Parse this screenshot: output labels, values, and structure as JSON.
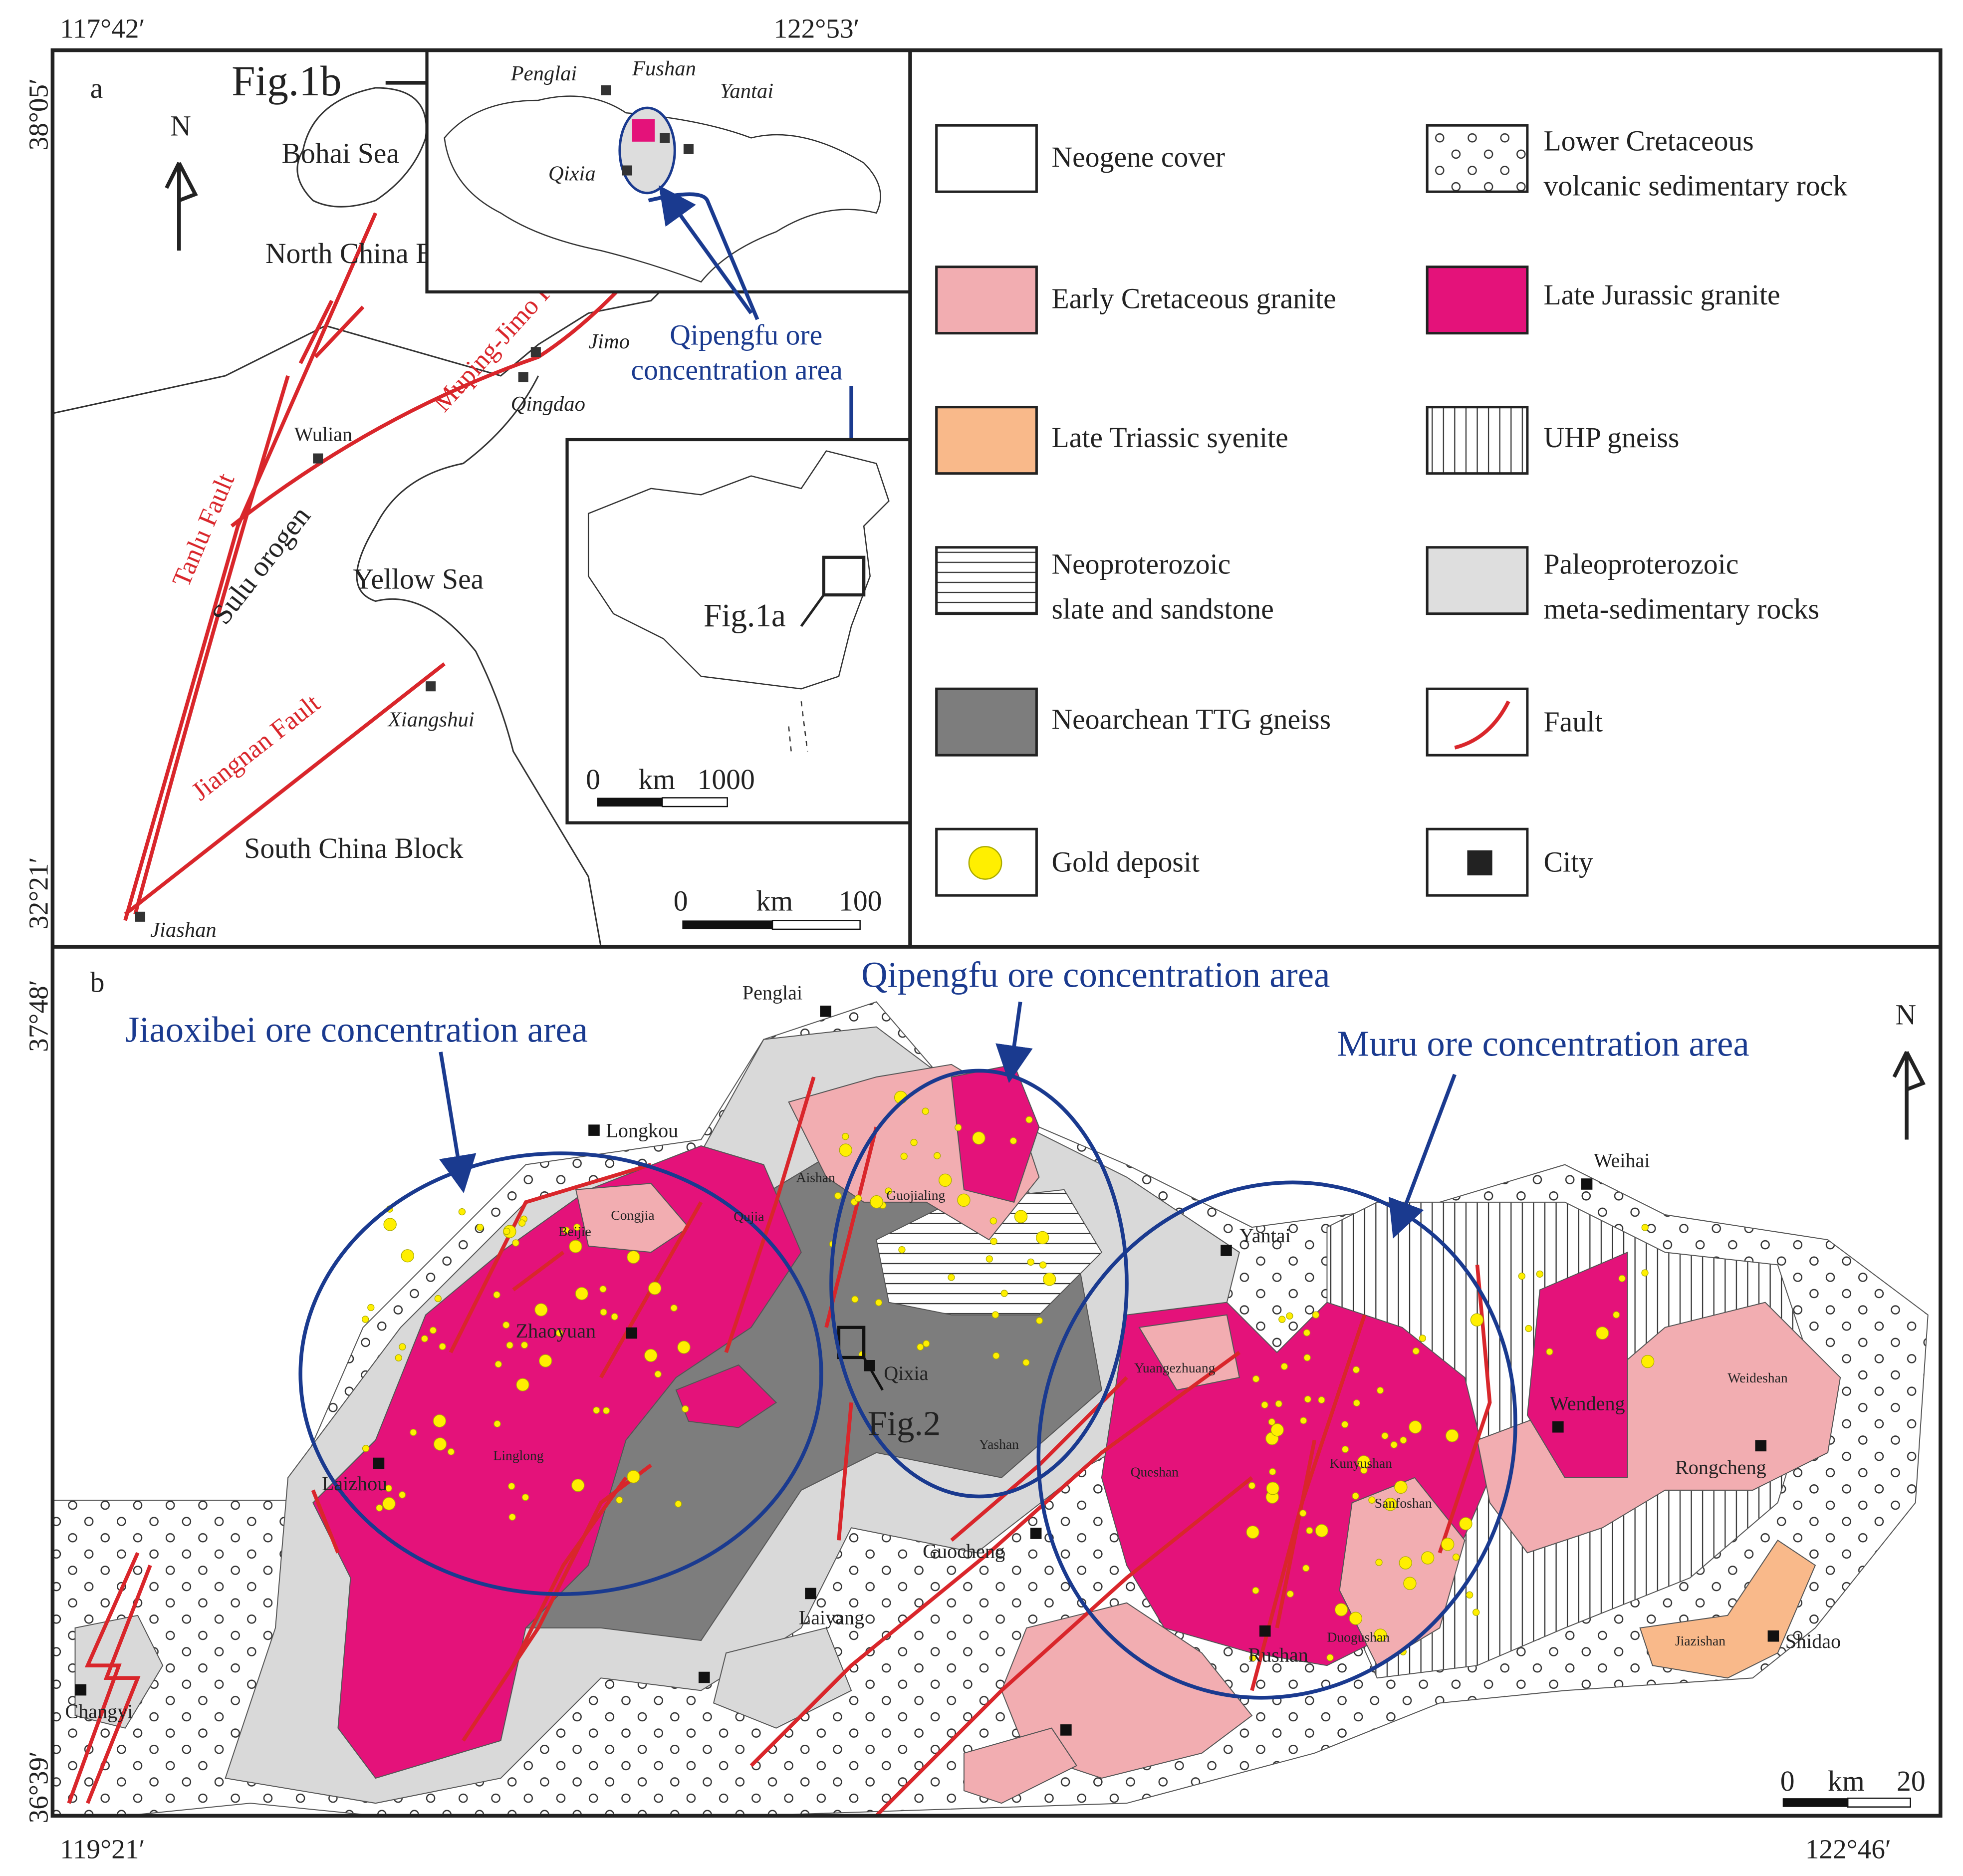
{
  "coords": {
    "a_lon_left": "117°42′",
    "a_lon_right": "122°53′",
    "a_lat_top": "38°05′",
    "a_lat_bottom": "32°21′",
    "b_lat_top": "37°48′",
    "b_lat_bottom": "36°39′",
    "b_lon_left": "119°21′",
    "b_lon_right": "122°46′"
  },
  "panel_a": {
    "label": "a",
    "north": "N",
    "inset_ref": "Fig.1b",
    "seas": [
      "Bohai Sea",
      "Yellow Sea"
    ],
    "blocks": [
      "North China Block",
      "South China Block"
    ],
    "orogen": "Sulu orogen",
    "faults": [
      "Tanlu Fault",
      "Muping-Jimo Fault",
      "Jiangnan Fault"
    ],
    "cities": [
      "Jimo",
      "Qingdao",
      "Wulian",
      "Xiangshui",
      "Jiashan"
    ],
    "inset_cities": [
      "Penglai",
      "Fushan",
      "Yantai",
      "Qixia"
    ],
    "ore_area": [
      "Qipengfu ore",
      "concentration area"
    ],
    "china_ref": "Fig.1a",
    "china_scale": [
      "0",
      "km",
      "1000"
    ],
    "scale": [
      "0",
      "km",
      "100"
    ]
  },
  "legend": [
    {
      "label": [
        "Neogene cover"
      ]
    },
    {
      "label": [
        "Lower Cretaceous",
        "volcanic  sedimentary rock"
      ]
    },
    {
      "label": [
        "Early Cretaceous granite"
      ]
    },
    {
      "label": [
        "Late Jurassic granite"
      ]
    },
    {
      "label": [
        "Late Triassic syenite"
      ]
    },
    {
      "label": [
        "UHP gneiss"
      ]
    },
    {
      "label": [
        "Neoproterozoic",
        "slate and sandstone"
      ]
    },
    {
      "label": [
        "Paleoproterozoic",
        "meta-sedimentary rocks"
      ]
    },
    {
      "label": [
        "Neoarchean TTG gneiss"
      ]
    },
    {
      "label": [
        "Fault"
      ]
    },
    {
      "label": [
        "Gold deposit"
      ]
    },
    {
      "label": [
        "City"
      ]
    }
  ],
  "panel_b": {
    "label": "b",
    "north": "N",
    "ore_areas": [
      "Jiaoxibei ore concentration area",
      "Qipengfu ore concentration area",
      "Muru ore concentration area"
    ],
    "cities": [
      "Penglai",
      "Longkou",
      "Zhaoyuan",
      "Yantai",
      "Weihai",
      "Qixia",
      "Wendeng",
      "Laizhou",
      "Rongcheng",
      "Guocheng",
      "Laiyang",
      "Rushan",
      "Shidao",
      "Changyi"
    ],
    "localities": [
      "Aishan",
      "Guojialing",
      "Qujia",
      "Congjia",
      "Beijie",
      "Yuangezhuang",
      "Weideshan",
      "Linglong",
      "Yashan",
      "Kunyushan",
      "Queshan",
      "Sanfoshan",
      "Duogushan",
      "Jiazishan"
    ],
    "fig_ref": "Fig.2",
    "scale": [
      "0",
      "km",
      "20"
    ]
  }
}
